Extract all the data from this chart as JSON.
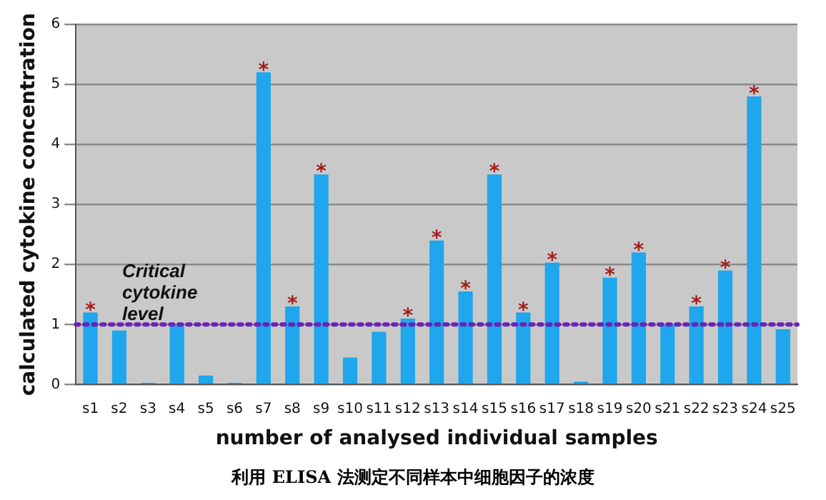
{
  "chart_data": {
    "type": "bar",
    "xlabel": "number of analysed individual samples",
    "ylabel": "calculated cytokine concentration",
    "categories": [
      "s1",
      "s2",
      "s3",
      "s4",
      "s5",
      "s6",
      "s7",
      "s8",
      "s9",
      "s10",
      "s11",
      "s12",
      "s13",
      "s14",
      "s15",
      "s16",
      "s17",
      "s18",
      "s19",
      "s20",
      "s21",
      "s22",
      "s23",
      "s24",
      "s25"
    ],
    "values": [
      1.2,
      0.9,
      0.03,
      1.0,
      0.15,
      0.03,
      5.2,
      1.3,
      3.5,
      0.45,
      0.88,
      1.1,
      2.4,
      1.55,
      3.5,
      1.2,
      2.03,
      0.05,
      1.78,
      2.2,
      1.0,
      1.3,
      1.9,
      4.8,
      0.92
    ],
    "color": "#1fa6ec",
    "ylim": [
      0,
      6
    ],
    "yticks": [
      0,
      1,
      2,
      3,
      4,
      5,
      6
    ],
    "grid": "y",
    "legend": false,
    "ref_lines": [
      {
        "axis": "y",
        "value": 1,
        "label": "Critical cytokine level",
        "color": "#6a22b8",
        "line_style": "dotted"
      }
    ],
    "annotations": [
      {
        "text": "*",
        "x": "s1",
        "y": 1.2
      },
      {
        "text": "*",
        "x": "s7",
        "y": 5.2
      },
      {
        "text": "*",
        "x": "s8",
        "y": 1.3
      },
      {
        "text": "*",
        "x": "s9",
        "y": 3.5
      },
      {
        "text": "*",
        "x": "s12",
        "y": 1.1
      },
      {
        "text": "*",
        "x": "s13",
        "y": 2.4
      },
      {
        "text": "*",
        "x": "s14",
        "y": 1.55
      },
      {
        "text": "*",
        "x": "s15",
        "y": 3.5
      },
      {
        "text": "*",
        "x": "s16",
        "y": 1.2
      },
      {
        "text": "*",
        "x": "s17",
        "y": 2.03
      },
      {
        "text": "*",
        "x": "s19",
        "y": 1.78
      },
      {
        "text": "*",
        "x": "s20",
        "y": 2.2
      },
      {
        "text": "*",
        "x": "s22",
        "y": 1.3
      },
      {
        "text": "*",
        "x": "s23",
        "y": 1.9
      },
      {
        "text": "*",
        "x": "s24",
        "y": 4.8
      },
      "利用 ELISA 法测定不同样本中细胞因子的浓度"
    ]
  }
}
